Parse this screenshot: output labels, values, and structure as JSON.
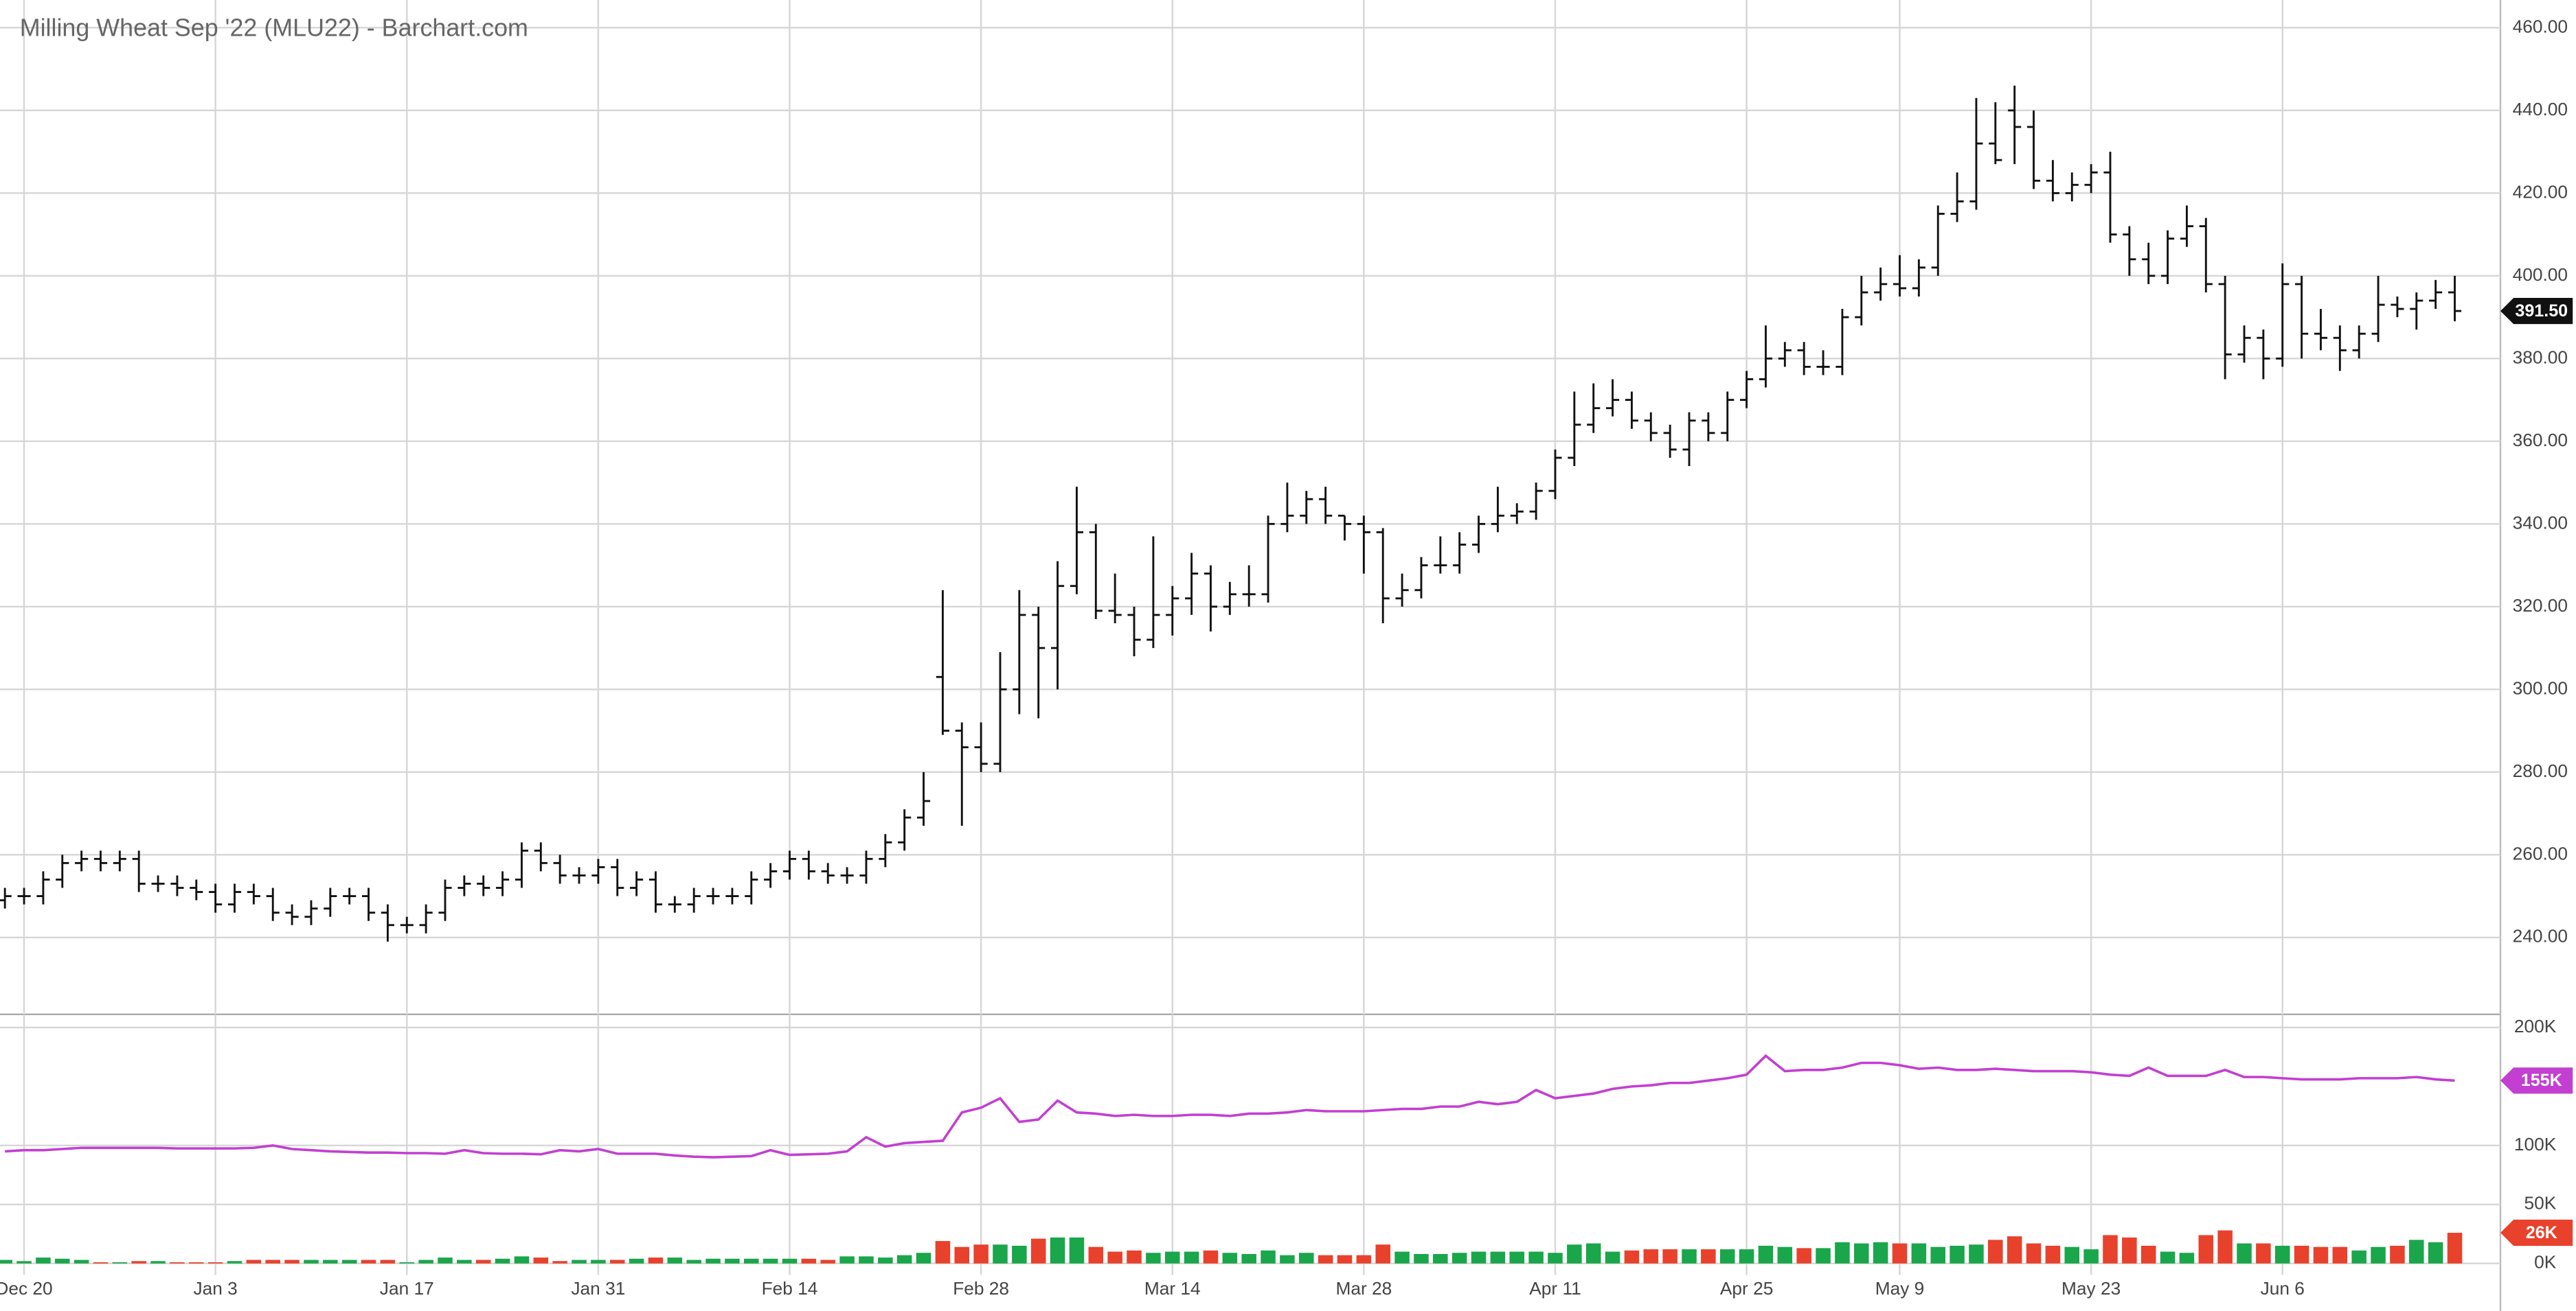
{
  "chart_data": {
    "type": "ohlc",
    "title": "Milling Wheat Sep '22 (MLU22) - Barchart.com",
    "categories": [
      null,
      "Dec 20",
      null,
      null,
      null,
      null,
      null,
      null,
      null,
      null,
      null,
      "Jan 3",
      null,
      null,
      null,
      null,
      null,
      null,
      null,
      null,
      null,
      "Jan 17",
      null,
      null,
      null,
      null,
      null,
      null,
      null,
      null,
      null,
      "Jan 31",
      null,
      null,
      null,
      null,
      null,
      null,
      null,
      null,
      null,
      "Feb 14",
      null,
      null,
      null,
      null,
      null,
      null,
      null,
      null,
      null,
      "Feb 28",
      null,
      null,
      null,
      null,
      null,
      null,
      null,
      null,
      null,
      "Mar 14",
      null,
      null,
      null,
      null,
      null,
      null,
      null,
      null,
      null,
      "Mar 28",
      null,
      null,
      null,
      null,
      null,
      null,
      null,
      null,
      null,
      "Apr 11",
      null,
      null,
      null,
      null,
      null,
      null,
      null,
      null,
      null,
      "Apr 25",
      null,
      null,
      null,
      null,
      null,
      null,
      null,
      "May 9",
      null,
      null,
      null,
      null,
      null,
      null,
      null,
      null,
      null,
      "May 23",
      null,
      null,
      null,
      null,
      null,
      null,
      null,
      null,
      null,
      "Jun 6",
      null,
      null,
      null,
      null,
      null,
      null,
      null,
      null,
      null
    ],
    "open": [
      249,
      250,
      250,
      254,
      258,
      259,
      258,
      259,
      253,
      253,
      252,
      251,
      248,
      251,
      250,
      246,
      245,
      247,
      250,
      250,
      246,
      243,
      243,
      246,
      252,
      253,
      252,
      254,
      261,
      258,
      255,
      255,
      257,
      252,
      254,
      248,
      248,
      250,
      250,
      250,
      254,
      256,
      259,
      256,
      255,
      255,
      259,
      263,
      269,
      303,
      290,
      286,
      282,
      300,
      318,
      310,
      325,
      338,
      319,
      318,
      312,
      318,
      322,
      328,
      320,
      323,
      323,
      340,
      342,
      346,
      342,
      340,
      338,
      322,
      324,
      330,
      330,
      335,
      340,
      342,
      343,
      348,
      356,
      364,
      368,
      370,
      365,
      362,
      358,
      365,
      362,
      370,
      375,
      380,
      382,
      378,
      378,
      390,
      396,
      398,
      397,
      402,
      415,
      418,
      432,
      440,
      436,
      423,
      420,
      422,
      425,
      410,
      404,
      400,
      409,
      412,
      398,
      381,
      385,
      380,
      398,
      386,
      385,
      382,
      386,
      393,
      392,
      394,
      396
    ],
    "high": [
      252,
      252,
      256,
      260,
      261,
      261,
      261,
      261,
      255,
      255,
      254,
      253,
      253,
      253,
      252,
      248,
      249,
      252,
      252,
      252,
      248,
      245,
      248,
      254,
      255,
      255,
      256,
      263,
      263,
      260,
      257,
      259,
      259,
      256,
      256,
      250,
      252,
      252,
      252,
      256,
      258,
      261,
      261,
      258,
      257,
      261,
      265,
      271,
      280,
      324,
      292,
      292,
      309,
      324,
      320,
      331,
      349,
      340,
      328,
      320,
      337,
      325,
      333,
      330,
      326,
      330,
      342,
      350,
      348,
      349,
      342,
      342,
      339,
      328,
      332,
      337,
      338,
      342,
      349,
      345,
      350,
      358,
      372,
      374,
      375,
      372,
      367,
      364,
      367,
      367,
      372,
      377,
      388,
      384,
      384,
      382,
      392,
      400,
      402,
      405,
      404,
      417,
      425,
      443,
      442,
      446,
      440,
      428,
      425,
      427,
      430,
      412,
      408,
      411,
      417,
      414,
      400,
      388,
      387,
      403,
      400,
      392,
      388,
      388,
      400,
      395,
      396,
      399,
      400
    ],
    "low": [
      247,
      248,
      248,
      252,
      256,
      256,
      256,
      251,
      251,
      250,
      249,
      246,
      246,
      248,
      244,
      243,
      243,
      245,
      248,
      244,
      239,
      241,
      241,
      244,
      250,
      250,
      250,
      252,
      256,
      253,
      253,
      253,
      250,
      250,
      246,
      246,
      246,
      248,
      248,
      248,
      252,
      254,
      254,
      253,
      253,
      253,
      257,
      261,
      267,
      289,
      267,
      280,
      280,
      294,
      293,
      300,
      323,
      317,
      316,
      308,
      310,
      313,
      318,
      314,
      318,
      320,
      321,
      338,
      340,
      340,
      336,
      328,
      316,
      320,
      322,
      328,
      328,
      333,
      338,
      340,
      341,
      346,
      354,
      362,
      366,
      363,
      360,
      356,
      354,
      360,
      360,
      368,
      373,
      378,
      376,
      376,
      376,
      388,
      394,
      395,
      395,
      400,
      413,
      416,
      427,
      427,
      421,
      418,
      418,
      420,
      408,
      400,
      398,
      398,
      407,
      396,
      375,
      379,
      375,
      378,
      380,
      382,
      377,
      380,
      384,
      390,
      387,
      392,
      389
    ],
    "close": [
      250,
      250,
      254,
      258,
      259,
      258,
      259,
      253,
      253,
      252,
      251,
      248,
      251,
      250,
      246,
      245,
      247,
      250,
      250,
      246,
      243,
      243,
      246,
      252,
      253,
      252,
      254,
      261,
      258,
      255,
      255,
      257,
      252,
      254,
      248,
      248,
      250,
      250,
      250,
      254,
      256,
      259,
      256,
      255,
      255,
      259,
      263,
      269,
      273,
      290,
      286,
      282,
      300,
      318,
      310,
      325,
      338,
      319,
      318,
      312,
      318,
      322,
      328,
      320,
      323,
      323,
      340,
      342,
      346,
      342,
      340,
      338,
      322,
      324,
      330,
      330,
      335,
      340,
      342,
      343,
      348,
      356,
      364,
      368,
      370,
      365,
      362,
      358,
      365,
      362,
      370,
      375,
      380,
      382,
      378,
      378,
      390,
      396,
      398,
      397,
      402,
      415,
      418,
      432,
      428,
      436,
      423,
      420,
      422,
      425,
      410,
      404,
      400,
      409,
      412,
      398,
      381,
      385,
      380,
      398,
      386,
      385,
      382,
      386,
      393,
      392,
      394,
      396,
      391.5
    ],
    "color": "#111111",
    "last_label": "391.50",
    "ylim": [
      221.8,
      466.7
    ],
    "yticks": [
      {
        "value": 240,
        "label": "240.00"
      },
      {
        "value": 260,
        "label": "260.00"
      },
      {
        "value": 280,
        "label": "280.00"
      },
      {
        "value": 300,
        "label": "300.00"
      },
      {
        "value": 320,
        "label": "320.00"
      },
      {
        "value": 340,
        "label": "340.00"
      },
      {
        "value": 360,
        "label": "360.00"
      },
      {
        "value": 380,
        "label": "380.00"
      },
      {
        "value": 400,
        "label": "400.00"
      },
      {
        "value": 420,
        "label": "420.00"
      },
      {
        "value": 440,
        "label": "440.00"
      },
      {
        "value": 460,
        "label": "460.00"
      }
    ],
    "grid": true,
    "lower": {
      "ylim": [
        -40.3,
        211.1
      ],
      "yticks": [
        {
          "value": 0,
          "label": "0K"
        },
        {
          "value": 50,
          "label": "50K"
        },
        {
          "value": 100,
          "label": "100K"
        },
        {
          "value": 200,
          "label": "200K"
        }
      ],
      "open_interest": {
        "color": "#c23fd1",
        "last_label": "155K",
        "values": [
          95,
          96,
          96,
          97,
          98,
          98,
          98,
          98,
          98,
          97.5,
          97.5,
          97.5,
          97.5,
          98,
          100,
          97,
          96,
          95,
          94.5,
          94,
          94,
          93.5,
          93.5,
          93,
          96,
          93.5,
          93,
          93,
          92.5,
          96,
          95,
          97,
          93,
          93,
          93,
          91.5,
          90.5,
          90,
          90.5,
          91,
          96,
          92,
          92.5,
          93,
          95,
          107,
          99,
          102,
          103,
          104,
          128,
          132,
          140,
          120,
          122,
          138,
          128,
          127,
          125,
          126,
          125,
          125,
          126,
          126,
          125,
          127,
          127,
          128,
          130,
          129,
          129,
          129,
          130,
          131,
          131,
          133,
          133,
          137,
          135,
          137,
          147,
          140,
          142,
          144,
          148,
          150,
          151,
          153,
          153,
          155,
          157,
          160,
          176,
          163,
          164,
          164,
          166,
          170,
          170,
          168,
          165,
          166,
          164,
          164,
          165,
          164,
          163,
          163,
          163,
          162,
          160,
          159,
          166,
          159,
          159,
          159,
          164,
          158,
          158,
          157,
          156,
          156,
          156,
          157,
          157,
          157,
          158,
          156,
          155
        ]
      },
      "volume": {
        "up_color": "#1aa64a",
        "down_color": "#e8412c",
        "last_label": "26K",
        "values": [
          3,
          2,
          5,
          4,
          3,
          1,
          1,
          2,
          2,
          1,
          1,
          1,
          2,
          3,
          3,
          3,
          3,
          3,
          3,
          3,
          3,
          1,
          3,
          5,
          3,
          3,
          4,
          6,
          5,
          2,
          3,
          3,
          3,
          4,
          5,
          5,
          3,
          4,
          4,
          4,
          4,
          4,
          4,
          3,
          6,
          6,
          5,
          7,
          9,
          19,
          14,
          16,
          16,
          15,
          21,
          22,
          22,
          14,
          10,
          11,
          9,
          10,
          10,
          11,
          9,
          8,
          11,
          7,
          9,
          7,
          7,
          7,
          16,
          10,
          8,
          8,
          9,
          10,
          10,
          10,
          10,
          9,
          16,
          17,
          10,
          11,
          12,
          12,
          12,
          12,
          12,
          12,
          15,
          14,
          13,
          13,
          18,
          17,
          18,
          17,
          17,
          14,
          15,
          16,
          20,
          23,
          17,
          15,
          14,
          12,
          24,
          22,
          15,
          10,
          9,
          24,
          28,
          17,
          17,
          15,
          15,
          14,
          14,
          11,
          14,
          15,
          20,
          18,
          26
        ]
      }
    }
  }
}
